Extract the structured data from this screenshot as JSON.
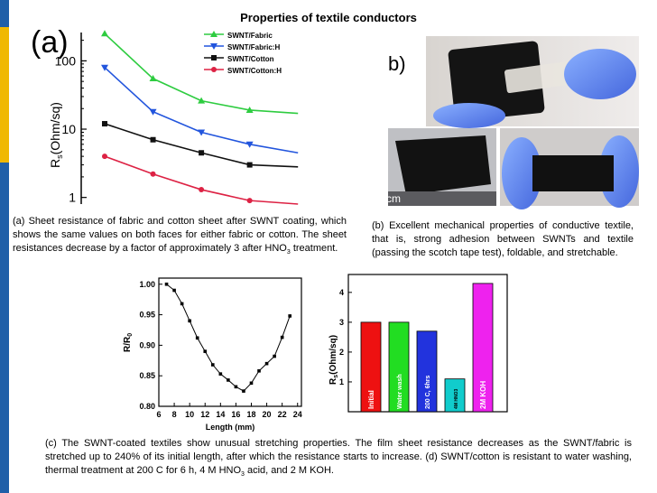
{
  "slide": {
    "title": "Properties of textile conductors"
  },
  "panel_a": {
    "label": "(a)",
    "chart_data": {
      "type": "line",
      "y_scale": "log",
      "ylabel_main": "R",
      "ylabel_sub": "s",
      "ylabel_unit": "(Ohm/sq)",
      "yticks": [
        1,
        10,
        100
      ],
      "ytick_labels": [
        "1",
        "10",
        "100"
      ],
      "ylim": [
        0.8,
        260
      ],
      "series": [
        {
          "name": "SWNT/Fabric",
          "color": "#2ecc40",
          "marker": "triangle-up",
          "values": [
            250,
            55,
            26,
            19,
            17
          ]
        },
        {
          "name": "SWNT/Fabric:H",
          "color": "#2255dd",
          "marker": "triangle-down",
          "values": [
            80,
            18,
            9,
            6,
            4.5
          ]
        },
        {
          "name": "SWNT/Cotton",
          "color": "#111111",
          "marker": "square",
          "values": [
            12,
            7,
            4.5,
            3,
            2.8
          ]
        },
        {
          "name": "SWNT/Cotton:H",
          "color": "#dd2244",
          "marker": "circle",
          "values": [
            4,
            2.2,
            1.3,
            0.9,
            0.8
          ]
        }
      ]
    }
  },
  "panel_b": {
    "label": "b)",
    "scale_text": "cm"
  },
  "caption_a": {
    "text_before": "(a) Sheet resistance of fabric and cotton sheet after SWNT coating, which shows the same values on both faces for either fabric or cotton. The sheet resistances decrease by a factor of approximately 3 after HNO",
    "sub": "3",
    "text_after": " treatment."
  },
  "caption_b": {
    "text": "(b) Excellent mechanical properties of conductive textile, that is, strong adhesion between SWNTs and textile (passing the scotch tape test), foldable, and stretchable."
  },
  "panel_c": {
    "chart_data": {
      "type": "line",
      "x": [
        7,
        8,
        9,
        10,
        11,
        12,
        13,
        14,
        15,
        16,
        17,
        18,
        19,
        20,
        21,
        22,
        23
      ],
      "y": [
        1.0,
        0.99,
        0.968,
        0.94,
        0.912,
        0.89,
        0.868,
        0.853,
        0.843,
        0.832,
        0.825,
        0.838,
        0.858,
        0.87,
        0.882,
        0.913,
        0.948
      ],
      "xlabel": "Length (mm)",
      "ylabel_main": "R/R",
      "ylabel_sub": "0",
      "xlim": [
        6,
        24.5
      ],
      "ylim": [
        0.8,
        1.01
      ],
      "xticks": [
        6,
        8,
        10,
        12,
        14,
        16,
        18,
        20,
        22,
        24
      ],
      "yticks": [
        0.8,
        0.85,
        0.9,
        0.95,
        1.0
      ],
      "ytick_labels": [
        "0.80",
        "0.85",
        "0.90",
        "0.95",
        "1.00"
      ],
      "color": "#000000"
    }
  },
  "panel_d": {
    "chart_data": {
      "type": "bar",
      "categories": [
        "Initial",
        "Water wash",
        "200 C, 6hrs",
        "4M HNO3",
        "2M KOH"
      ],
      "values": [
        3.0,
        3.0,
        2.7,
        1.1,
        4.3
      ],
      "colors": [
        "#ee1111",
        "#22dd22",
        "#2233dd",
        "#11cccc",
        "#ee22ee"
      ],
      "ylabel_main": "R",
      "ylabel_sub": "s",
      "ylabel_unit": "(Ohm/sq)",
      "ylim": [
        0,
        4.6
      ],
      "yticks": [
        0,
        1,
        2,
        3,
        4
      ]
    }
  },
  "caption_c": {
    "text_before": "(c) The SWNT-coated textiles show unusual stretching properties. The film sheet resistance decreases as the SWNT/fabric is stretched up to 240% of its initial length, after which the resistance starts to increase. (d) SWNT/cotton is resistant to water washing, thermal treatment at 200 C for 6 h, 4 M HNO",
    "sub": "3",
    "text_after": " acid, and 2 M KOH."
  }
}
